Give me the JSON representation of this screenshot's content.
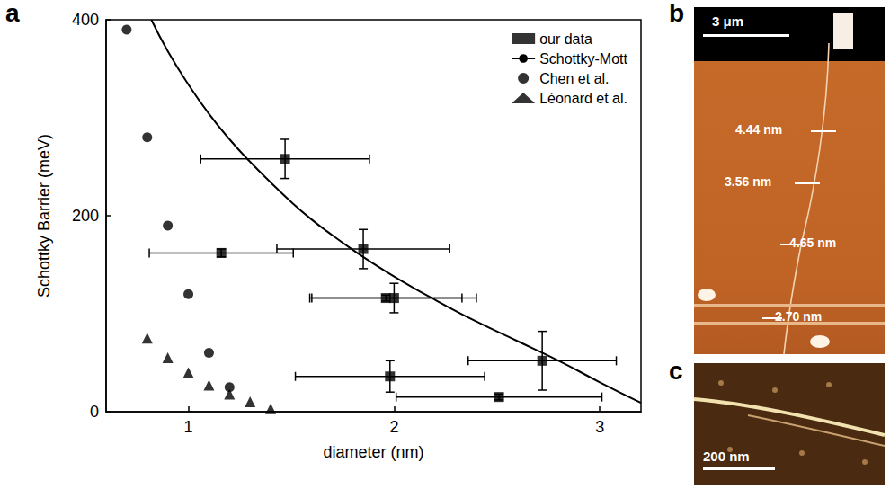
{
  "chart_data": {
    "type": "scatter",
    "label": "a",
    "xlabel": "diameter (nm)",
    "ylabel": "Schottky Barrier (meV)",
    "xlim": [
      0.6,
      3.2
    ],
    "xticks": [
      1,
      2,
      3
    ],
    "ylim": [
      0,
      400
    ],
    "yticks": [
      0,
      200,
      400
    ],
    "grid": false,
    "legend": "top-right",
    "series": [
      {
        "name": "our data",
        "type": "scatter",
        "marker": "square",
        "color": "#000000",
        "x": [
          1.47,
          1.16,
          1.85,
          1.96,
          2.0,
          1.98,
          2.72,
          2.51
        ],
        "values": [
          258,
          162,
          166,
          116,
          116,
          36,
          52,
          15
        ],
        "x_error": [
          0.41,
          0.35,
          0.42,
          0.37,
          0.4,
          0.46,
          0.36,
          0.5
        ],
        "y_error": [
          20,
          4,
          20,
          3,
          15,
          16,
          30,
          3
        ]
      },
      {
        "name": "Schottky-Mott",
        "type": "line",
        "line_style": "solid",
        "color": "#000000",
        "x": [
          0.82,
          0.9,
          1.0,
          1.1,
          1.2,
          1.3,
          1.4,
          1.5,
          1.6,
          1.7,
          1.8,
          1.9,
          2.0,
          2.2,
          2.4,
          2.6,
          2.8,
          3.0,
          3.2
        ],
        "values": [
          400,
          368,
          334,
          304,
          278,
          255,
          234,
          214,
          196,
          180,
          165,
          151,
          138,
          114,
          92,
          72,
          52,
          30,
          9
        ]
      },
      {
        "name": "Chen et al.",
        "type": "scatter",
        "marker": "circle",
        "color": "#000000",
        "x": [
          0.7,
          0.8,
          0.9,
          1.0,
          1.1,
          1.2
        ],
        "values": [
          390,
          280,
          190,
          120,
          60,
          25
        ]
      },
      {
        "name": "Léonard et al.",
        "type": "scatter",
        "marker": "triangle",
        "color": "#000000",
        "x": [
          0.8,
          0.9,
          1.0,
          1.1,
          1.2,
          1.3,
          1.4
        ],
        "values": [
          75,
          55,
          40,
          27,
          18,
          10,
          3
        ]
      }
    ]
  },
  "images": [
    {
      "label": "b",
      "scale_bar": "3 μm",
      "annotations": [
        "4.44 nm",
        "3.56 nm",
        "4.65 nm",
        "2.70 nm"
      ]
    },
    {
      "label": "c",
      "scale_bar": "200 nm"
    }
  ]
}
